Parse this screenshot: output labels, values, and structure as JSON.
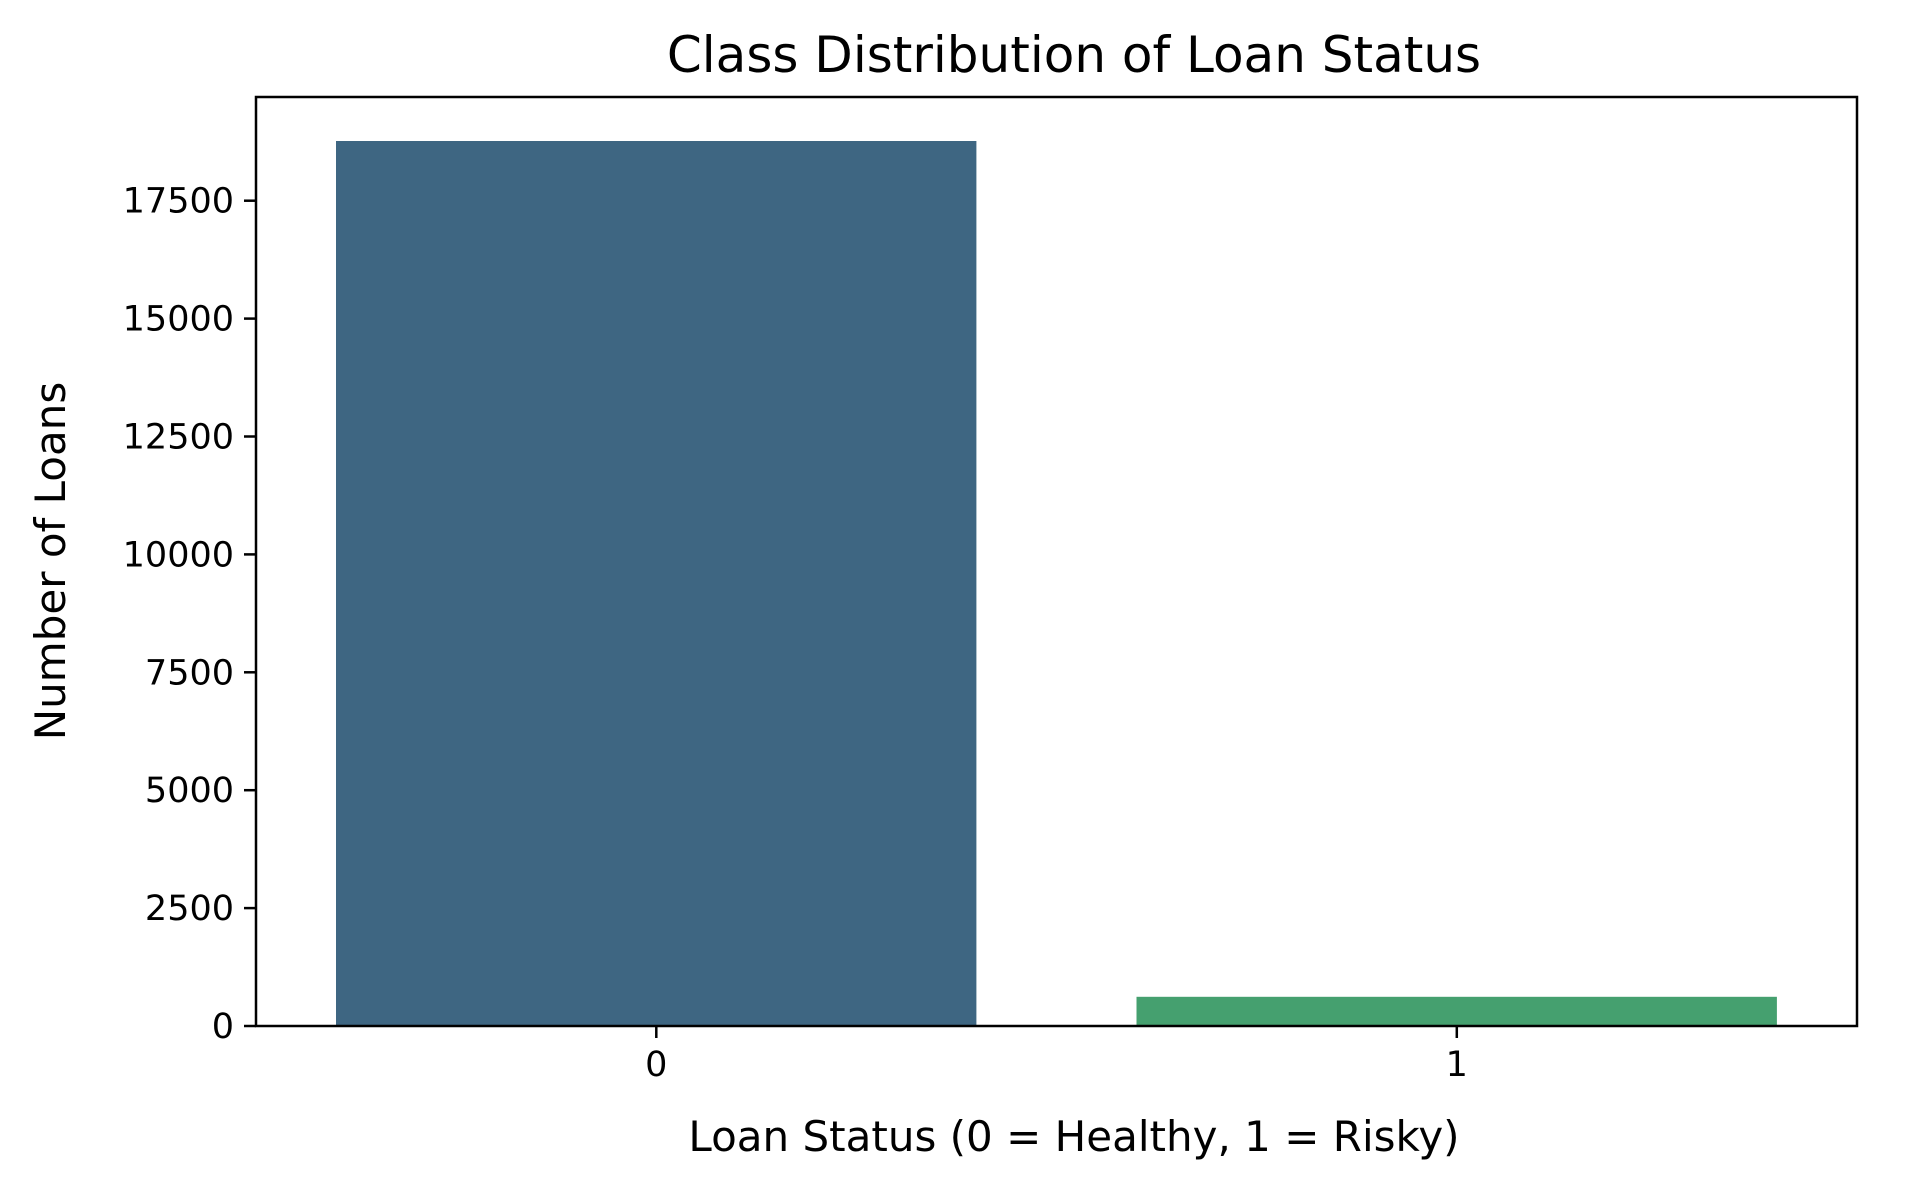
{
  "chart_data": {
    "type": "bar",
    "title": "Class Distribution of Loan Status",
    "xlabel": "Loan Status (0 = Healthy, 1 = Risky)",
    "ylabel": "Number of Loans",
    "categories": [
      "0",
      "1"
    ],
    "values": [
      18765,
      619
    ],
    "colors": [
      "#3e6682",
      "#45a06f"
    ],
    "ylim": [
      0,
      19698
    ],
    "yticks": [
      0,
      2500,
      5000,
      7500,
      10000,
      12500,
      15000,
      17500
    ],
    "grid": false,
    "legend": "none"
  }
}
